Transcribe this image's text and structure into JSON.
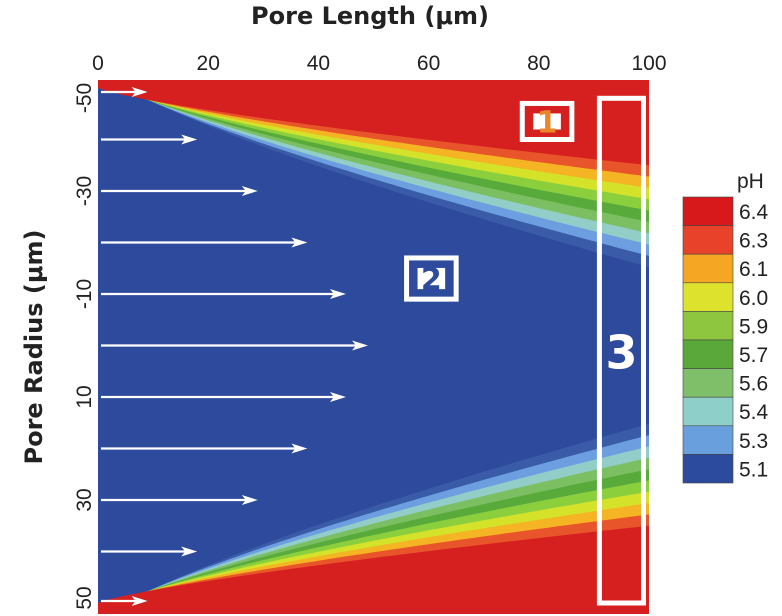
{
  "chart_data": {
    "type": "heatmap",
    "title": "",
    "xlabel": "Pore Length (μm)",
    "ylabel": "Pore Radius (μm)",
    "xlim": [
      0,
      100
    ],
    "ylim": [
      -50,
      50
    ],
    "x_ticks": [
      "0",
      "20",
      "40",
      "60",
      "80",
      "100"
    ],
    "y_ticks": [
      "-50",
      "-30",
      "-10",
      "10",
      "30",
      "50"
    ],
    "legend": {
      "title": "pH",
      "position": "right",
      "levels": [
        "6.4",
        "6.3",
        "6.1",
        "6.0",
        "5.9",
        "5.7",
        "5.6",
        "5.4",
        "5.3",
        "5.1"
      ],
      "colors": [
        "#d7191c",
        "#e8432a",
        "#f5a623",
        "#dde22c",
        "#8fc63f",
        "#5aa83a",
        "#7fbf6a",
        "#8fcfc9",
        "#6a9fde",
        "#2c4a9e"
      ]
    },
    "field_colors": [
      "#2e4a9c",
      "#3a5ca8",
      "#6d9fe0",
      "#92cdc8",
      "#7cbf63",
      "#58ab3a",
      "#8ccf3d",
      "#d4e22a",
      "#f4b423",
      "#e9552a",
      "#d61f1f"
    ],
    "flow_arrows": [
      {
        "y": -50,
        "length": 9
      },
      {
        "y": -40,
        "length": 18
      },
      {
        "y": -30,
        "length": 29
      },
      {
        "y": -20,
        "length": 38
      },
      {
        "y": -10,
        "length": 45
      },
      {
        "y": 0,
        "length": 49
      },
      {
        "y": 10,
        "length": 45
      },
      {
        "y": 20,
        "length": 38
      },
      {
        "y": 30,
        "length": 29
      },
      {
        "y": 40,
        "length": 18
      },
      {
        "y": 50,
        "length": 9
      }
    ],
    "annotations": [
      {
        "label": "1",
        "x": [
          77,
          86
        ],
        "y": [
          -47,
          -40
        ]
      },
      {
        "label": "2",
        "x": [
          56,
          65
        ],
        "y": [
          -17,
          -9
        ]
      },
      {
        "label": "3",
        "x": [
          91,
          99
        ],
        "y": [
          -48,
          50
        ]
      }
    ]
  }
}
